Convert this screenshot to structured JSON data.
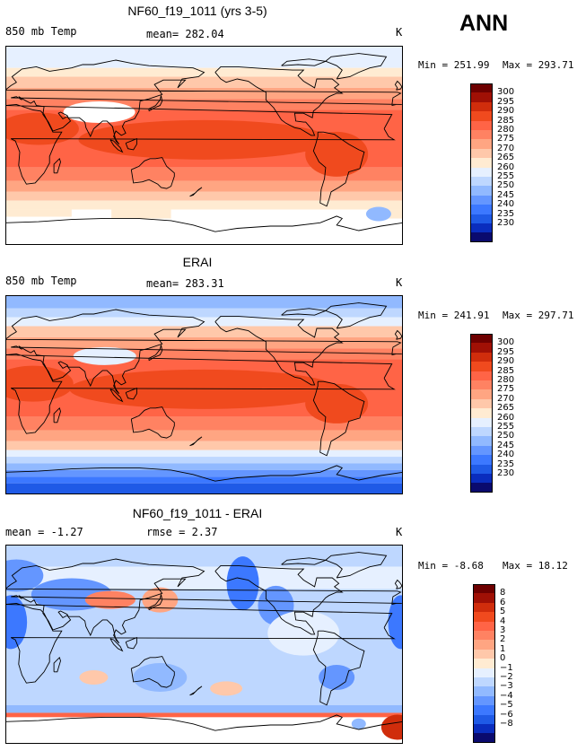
{
  "season": "ANN",
  "units": "K",
  "colors": {
    "abs_scale": [
      "#0a0a6e",
      "#0a2dbe",
      "#1f5ae6",
      "#3c78ff",
      "#6496ff",
      "#91b9ff",
      "#bed7ff",
      "#e6f0ff",
      "#ffebd2",
      "#ffc8aa",
      "#ffa582",
      "#ff8262",
      "#ff6446",
      "#f04a1e",
      "#d02d0c",
      "#a01005",
      "#6e0000"
    ],
    "diff_scale": [
      "#0a0a6e",
      "#0a2dbe",
      "#1f5ae6",
      "#3c78ff",
      "#6496ff",
      "#91b9ff",
      "#bed7ff",
      "#e6f0ff",
      "#ffebd2",
      "#ffc8aa",
      "#ffa582",
      "#ff8262",
      "#ff6446",
      "#f04a1e",
      "#d02d0c",
      "#a01005",
      "#6e0000"
    ],
    "land_outline": "#000000",
    "missing": "#ffffff"
  },
  "panels": [
    {
      "title": "NF60_f19_1011 (yrs 3-5)",
      "left_label": "850 mb Temp",
      "center_label": "mean= 282.04",
      "right_label": "K",
      "min_text": "Min = 251.99",
      "max_text": "Max = 293.71",
      "colorbar_labels": [
        "300",
        "295",
        "290",
        "285",
        "280",
        "275",
        "270",
        "265",
        "260",
        "255",
        "250",
        "245",
        "240",
        "235",
        "230"
      ],
      "kind": "model"
    },
    {
      "title": "ERAI",
      "left_label": "850 mb Temp",
      "center_label": "mean= 283.31",
      "right_label": "K",
      "min_text": "Min = 241.91",
      "max_text": "Max = 297.71",
      "colorbar_labels": [
        "300",
        "295",
        "290",
        "285",
        "280",
        "275",
        "270",
        "265",
        "260",
        "255",
        "250",
        "245",
        "240",
        "235",
        "230"
      ],
      "kind": "obs"
    },
    {
      "title": "NF60_f19_1011 - ERAI",
      "left_label": "mean =  -1.27",
      "center_label": "rmse =   2.37",
      "right_label": "K",
      "min_text": "Min =  -8.68",
      "max_text": "Max =  18.12",
      "colorbar_labels": [
        "8",
        "6",
        "5",
        "4",
        "3",
        "2",
        "1",
        "0",
        "−1",
        "−2",
        "−3",
        "−4",
        "−5",
        "−6",
        "−8"
      ],
      "kind": "diff"
    }
  ],
  "chart_data": {
    "type": "heatmap",
    "variable": "850 mb Temp",
    "units": "K",
    "season": "ANN",
    "maps": [
      {
        "title": "NF60_f19_1011 (yrs 3-5)",
        "mean": 282.04,
        "min": 251.99,
        "max": 293.71,
        "contour_levels": [
          230,
          235,
          240,
          245,
          250,
          255,
          260,
          265,
          270,
          275,
          280,
          285,
          290,
          295,
          300
        ]
      },
      {
        "title": "ERAI",
        "mean": 283.31,
        "min": 241.91,
        "max": 297.71,
        "contour_levels": [
          230,
          235,
          240,
          245,
          250,
          255,
          260,
          265,
          270,
          275,
          280,
          285,
          290,
          295,
          300
        ]
      },
      {
        "title": "NF60_f19_1011 - ERAI",
        "mean": -1.27,
        "rmse": 2.37,
        "min": -8.68,
        "max": 18.12,
        "contour_levels": [
          -8,
          -6,
          -5,
          -4,
          -3,
          -2,
          -1,
          0,
          1,
          2,
          3,
          4,
          5,
          6,
          8
        ]
      }
    ]
  }
}
